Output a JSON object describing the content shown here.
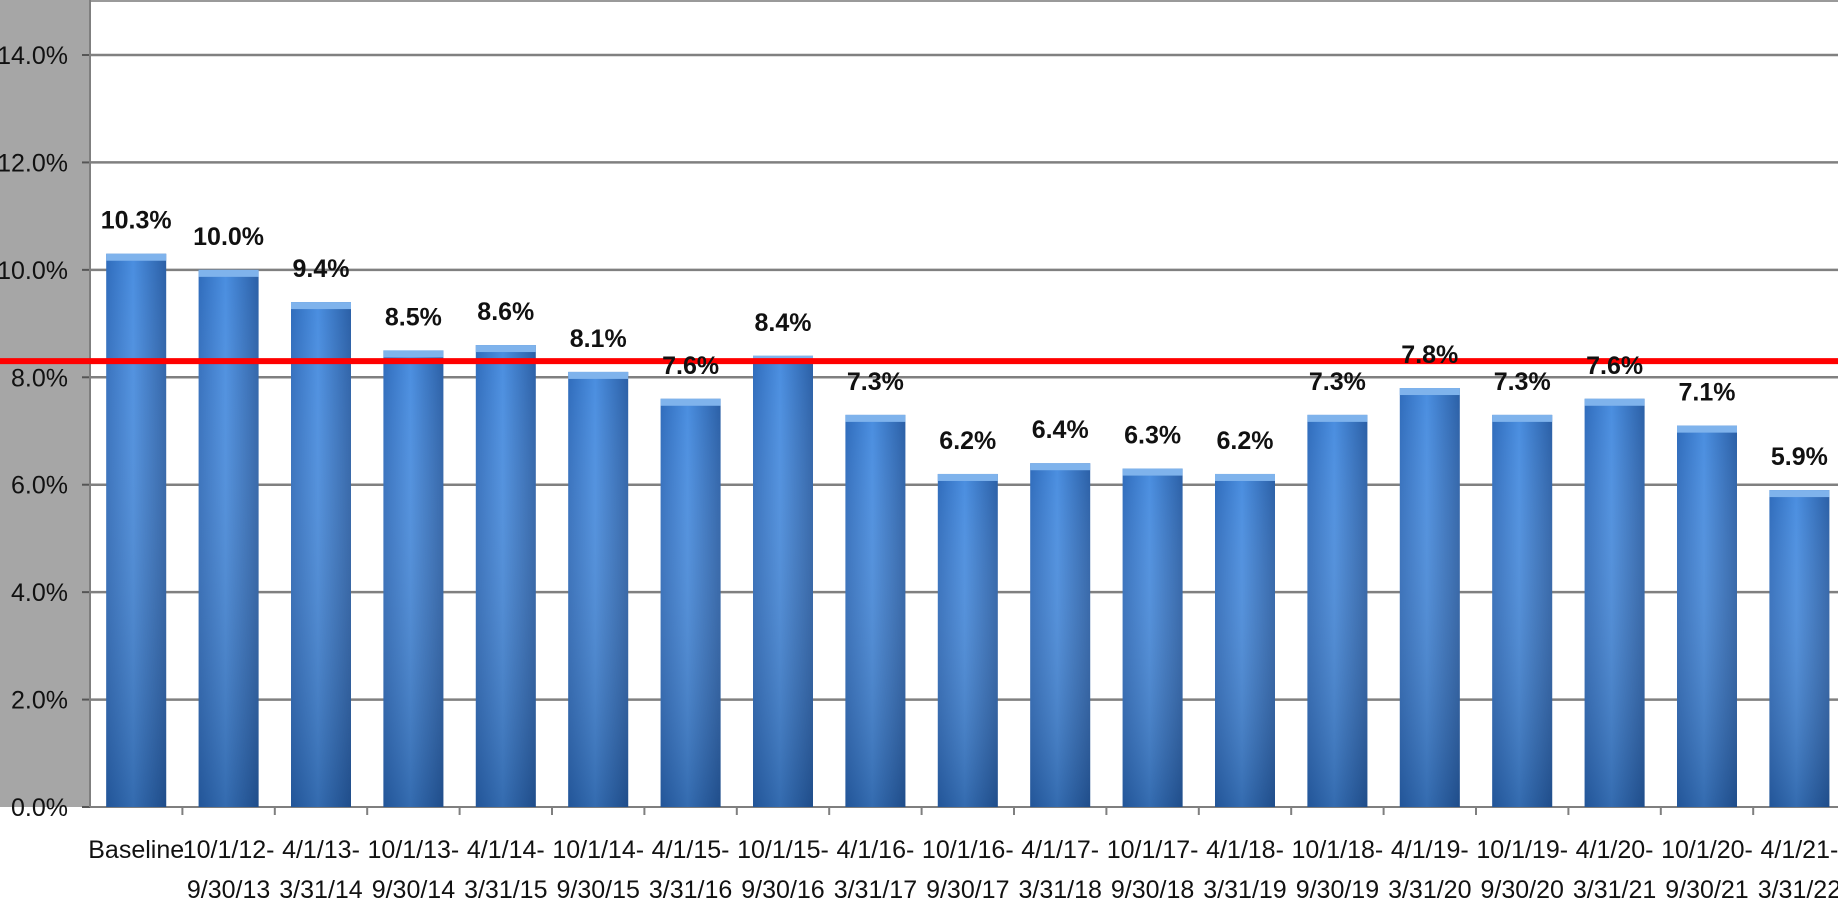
{
  "chart_data": {
    "type": "bar",
    "title": "",
    "xlabel": "",
    "ylabel": "",
    "ylim": [
      0,
      14
    ],
    "y_ticks": [
      0,
      2,
      4,
      6,
      8,
      10,
      12,
      14
    ],
    "y_tick_labels": [
      "0.0%",
      "2.0%",
      "4.0%",
      "6.0%",
      "8.0%",
      "10.0%",
      "12.0%",
      "14.0%"
    ],
    "grid": true,
    "categories": [
      [
        "Baseline",
        ""
      ],
      [
        "10/1/12-",
        "9/30/13"
      ],
      [
        "4/1/13-",
        "3/31/14"
      ],
      [
        "10/1/13-",
        "9/30/14"
      ],
      [
        "4/1/14-",
        "3/31/15"
      ],
      [
        "10/1/14-",
        "9/30/15"
      ],
      [
        "4/1/15-",
        "3/31/16"
      ],
      [
        "10/1/15-",
        "9/30/16"
      ],
      [
        "4/1/16-",
        "3/31/17"
      ],
      [
        "10/1/16-",
        "9/30/17"
      ],
      [
        "4/1/17-",
        "3/31/18"
      ],
      [
        "10/1/17-",
        "9/30/18"
      ],
      [
        "4/1/18-",
        "3/31/19"
      ],
      [
        "10/1/18-",
        "9/30/19"
      ],
      [
        "4/1/19-",
        "3/31/20"
      ],
      [
        "10/1/19-",
        "9/30/20"
      ],
      [
        "4/1/20-",
        "3/31/21"
      ],
      [
        "10/1/20-",
        "9/30/21"
      ],
      [
        "4/1/21-",
        "3/31/22"
      ]
    ],
    "values": [
      10.3,
      10.0,
      9.4,
      8.5,
      8.6,
      8.1,
      7.6,
      8.4,
      7.3,
      6.2,
      6.4,
      6.3,
      6.2,
      7.3,
      7.8,
      7.3,
      7.6,
      7.1,
      5.9
    ],
    "data_labels": [
      "10.3%",
      "10.0%",
      "9.4%",
      "8.5%",
      "8.6%",
      "8.1%",
      "7.6%",
      "8.4%",
      "7.3%",
      "6.2%",
      "6.4%",
      "6.3%",
      "6.2%",
      "7.3%",
      "7.8%",
      "7.3%",
      "7.6%",
      "7.1%",
      "5.9%"
    ],
    "reference_line": {
      "value": 8.3,
      "color": "#ff0000"
    },
    "colors": {
      "bar": "#3f82d6",
      "bar_dark": "#2a64ad",
      "left_panel": "#a6a6a6",
      "grid": "#808080"
    }
  }
}
